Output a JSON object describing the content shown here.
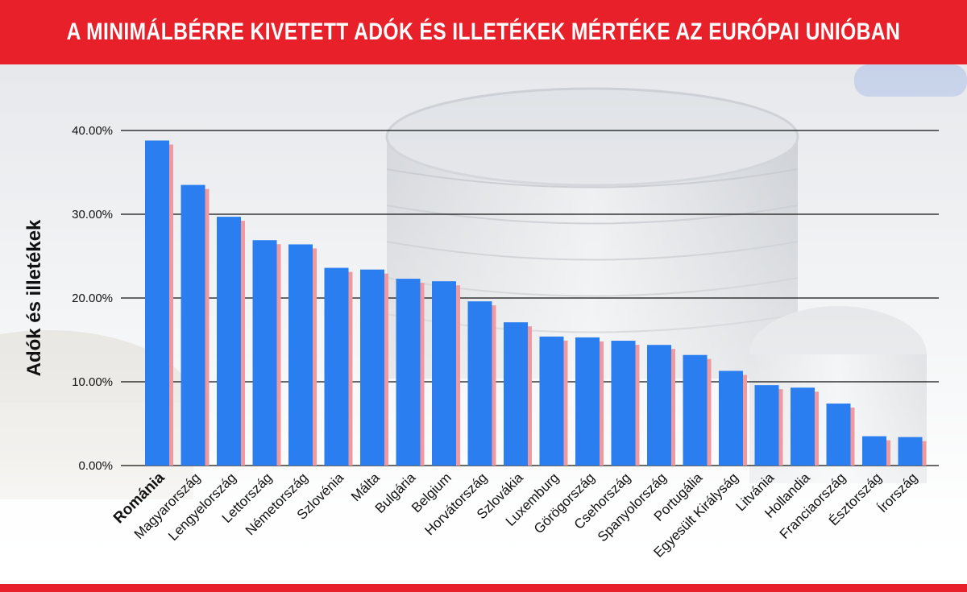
{
  "header": {
    "title": "A MINIMÁLBÉRRE KIVETETT ADÓK ÉS ILLETÉKEK MÉRTÉKE AZ EURÓPAI UNIÓBAN"
  },
  "colors": {
    "title_bar": "#e8202a",
    "bar_main": "#2a7ef0",
    "bar_shadow": "#f09aa0",
    "gridline": "#111111"
  },
  "chart_data": {
    "type": "bar",
    "title": "A MINIMÁLBÉRRE KIVETETT ADÓK ÉS ILLETÉKEK MÉRTÉKE AZ EURÓPAI UNIÓBAN",
    "xlabel": "",
    "ylabel": "Adók és illetékek",
    "ylim": [
      0,
      40
    ],
    "yticks": [
      "0.00%",
      "10.00%",
      "20.00%",
      "30.00%",
      "40.00%"
    ],
    "grid": true,
    "highlight_category": "Románia",
    "categories": [
      "Románia",
      "Magyarország",
      "Lengyelország",
      "Lettország",
      "Németország",
      "Szlovénia",
      "Málta",
      "Bulgária",
      "Belgium",
      "Horvátország",
      "Szlovákia",
      "Luxemburg",
      "Görögország",
      "Csehország",
      "Spanyolország",
      "Portugália",
      "Egyesült Királyság",
      "Litvánia",
      "Hollandia",
      "Franciaország",
      "Észtország",
      "Írország"
    ],
    "values": [
      38.8,
      33.5,
      29.7,
      26.9,
      26.4,
      23.6,
      23.4,
      22.3,
      22.0,
      19.6,
      17.1,
      15.4,
      15.3,
      14.9,
      14.4,
      13.2,
      11.3,
      9.6,
      9.3,
      7.4,
      3.5,
      3.4
    ]
  }
}
